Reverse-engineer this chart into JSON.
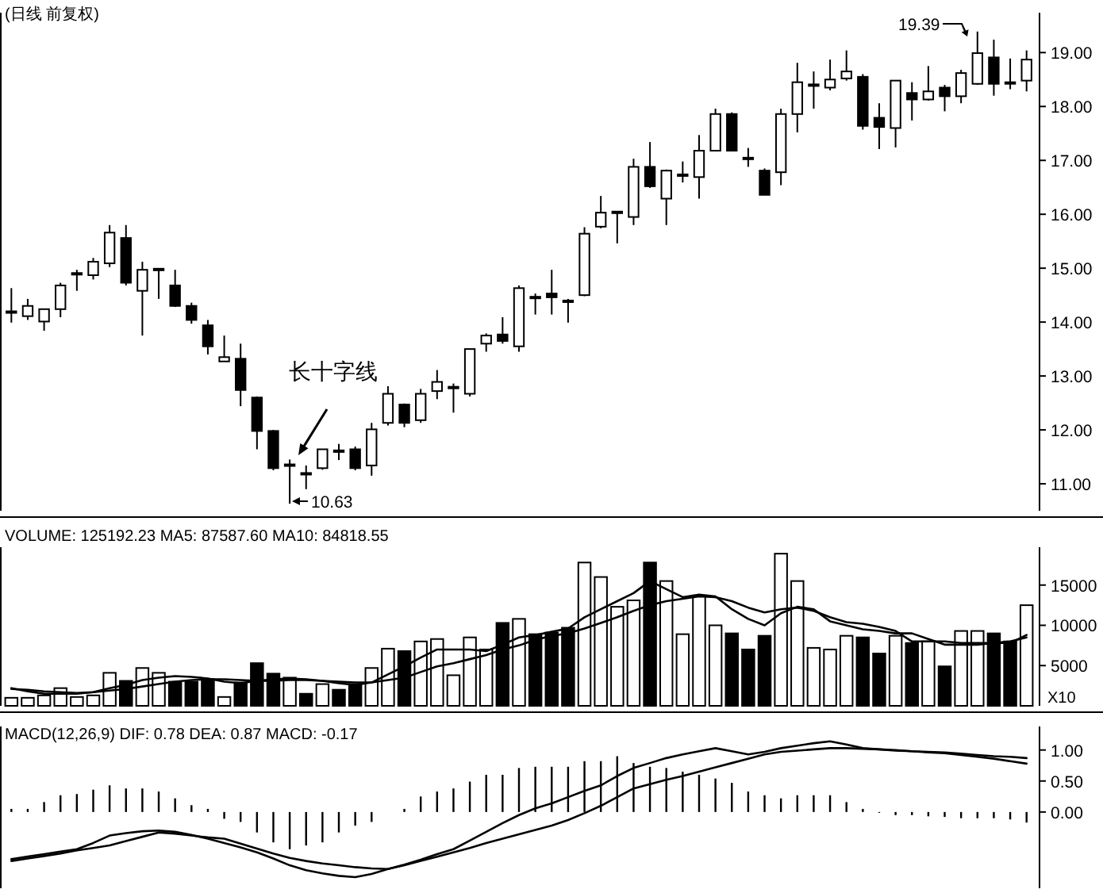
{
  "chart_data": [
    {
      "type": "candlestick",
      "title": "(日线 前复权)",
      "categories": [
        null,
        null,
        null,
        null,
        null,
        null,
        null,
        null,
        null,
        null,
        null,
        null,
        null,
        null,
        null,
        null,
        null,
        null,
        null,
        null,
        null,
        null,
        null,
        null,
        null,
        null,
        null,
        null,
        null,
        null,
        null,
        null,
        null,
        null,
        null,
        null,
        null,
        null,
        null,
        null,
        null,
        null,
        null,
        null,
        null,
        null,
        null,
        null,
        null,
        null,
        null,
        null,
        null,
        null,
        null,
        null,
        null,
        null,
        null,
        null,
        null,
        null,
        null
      ],
      "ohlc": [
        [
          14.18,
          14.63,
          13.99,
          14.2
        ],
        [
          14.11,
          14.43,
          14.04,
          14.3
        ],
        [
          14.01,
          14.24,
          13.84,
          14.24
        ],
        [
          14.24,
          14.73,
          14.09,
          14.68
        ],
        [
          14.89,
          14.97,
          14.58,
          14.91
        ],
        [
          14.87,
          15.19,
          14.79,
          15.12
        ],
        [
          15.09,
          15.8,
          15.02,
          15.66
        ],
        [
          15.56,
          15.8,
          14.68,
          14.73
        ],
        [
          14.58,
          15.12,
          13.75,
          14.97
        ],
        [
          14.97,
          14.99,
          14.43,
          14.99
        ],
        [
          14.68,
          14.97,
          14.28,
          14.3
        ],
        [
          14.3,
          14.36,
          13.97,
          14.04
        ],
        [
          13.94,
          14.04,
          13.4,
          13.55
        ],
        [
          13.27,
          13.75,
          13.27,
          13.35
        ],
        [
          13.32,
          13.6,
          12.44,
          12.74
        ],
        [
          12.6,
          12.62,
          11.64,
          11.98
        ],
        [
          11.98,
          12.0,
          11.25,
          11.29
        ],
        [
          11.34,
          11.45,
          10.63,
          11.36
        ],
        [
          11.19,
          11.34,
          10.9,
          11.2
        ],
        [
          11.29,
          11.64,
          11.26,
          11.64
        ],
        [
          11.6,
          11.74,
          11.44,
          11.62
        ],
        [
          11.64,
          11.69,
          11.25,
          11.29
        ],
        [
          11.34,
          12.13,
          11.15,
          12.01
        ],
        [
          12.13,
          12.81,
          12.08,
          12.67
        ],
        [
          12.47,
          12.49,
          12.05,
          12.13
        ],
        [
          12.18,
          12.76,
          12.13,
          12.67
        ],
        [
          12.72,
          13.11,
          12.57,
          12.89
        ],
        [
          12.78,
          12.86,
          12.32,
          12.8
        ],
        [
          12.67,
          13.5,
          12.62,
          13.5
        ],
        [
          13.6,
          13.79,
          13.45,
          13.75
        ],
        [
          13.77,
          14.09,
          13.6,
          13.65
        ],
        [
          13.55,
          14.68,
          13.45,
          14.63
        ],
        [
          14.45,
          14.53,
          14.14,
          14.47
        ],
        [
          14.53,
          14.97,
          14.14,
          14.46
        ],
        [
          14.4,
          14.43,
          13.99,
          14.39
        ],
        [
          14.5,
          15.76,
          14.48,
          15.64
        ],
        [
          15.77,
          16.34,
          15.74,
          16.03
        ],
        [
          16.04,
          16.05,
          15.46,
          16.05
        ],
        [
          15.95,
          17.03,
          15.8,
          16.88
        ],
        [
          16.88,
          17.34,
          16.49,
          16.52
        ],
        [
          16.29,
          16.83,
          15.8,
          16.81
        ],
        [
          16.73,
          16.98,
          16.59,
          16.74
        ],
        [
          16.69,
          17.47,
          16.29,
          17.18
        ],
        [
          17.18,
          17.96,
          17.18,
          17.86
        ],
        [
          17.86,
          17.89,
          17.18,
          17.18
        ],
        [
          17.05,
          17.23,
          16.88,
          17.04
        ],
        [
          16.81,
          16.85,
          16.36,
          16.36
        ],
        [
          16.78,
          17.96,
          16.54,
          17.86
        ],
        [
          17.86,
          18.81,
          17.52,
          18.45
        ],
        [
          18.4,
          18.65,
          17.96,
          18.41
        ],
        [
          18.35,
          18.87,
          18.3,
          18.5
        ],
        [
          18.52,
          19.04,
          18.48,
          18.65
        ],
        [
          18.55,
          18.6,
          17.57,
          17.64
        ],
        [
          17.79,
          18.06,
          17.21,
          17.62
        ],
        [
          17.6,
          18.48,
          17.24,
          18.48
        ],
        [
          18.25,
          18.45,
          17.74,
          18.13
        ],
        [
          18.13,
          18.75,
          18.11,
          18.28
        ],
        [
          18.35,
          18.4,
          17.91,
          18.19
        ],
        [
          18.19,
          18.68,
          18.06,
          18.62
        ],
        [
          18.42,
          19.39,
          18.4,
          18.99
        ],
        [
          18.91,
          19.24,
          18.2,
          18.42
        ],
        [
          18.45,
          18.89,
          18.32,
          18.44
        ],
        [
          18.48,
          19.04,
          18.28,
          18.87
        ]
      ],
      "ylim": [
        10.5,
        19.74
      ],
      "yticks": [
        {
          "value": 11,
          "label": "11.00"
        },
        {
          "value": 12,
          "label": "12.00"
        },
        {
          "value": 13,
          "label": "13.00"
        },
        {
          "value": 14,
          "label": "14.00"
        },
        {
          "value": 15,
          "label": "15.00"
        },
        {
          "value": 16,
          "label": "16.00"
        },
        {
          "value": 17,
          "label": "17.00"
        },
        {
          "value": 18,
          "label": "18.00"
        },
        {
          "value": 19,
          "label": "19.00"
        }
      ],
      "annotations": [
        "长十字线",
        "10.63",
        "19.39"
      ]
    },
    {
      "type": "bar",
      "title": "VOLUME: 125192.23 MA5: 87587.60 MA10: 84818.55",
      "ylabel": "X10",
      "categories": [
        null,
        null,
        null,
        null,
        null,
        null,
        null,
        null,
        null,
        null,
        null,
        null,
        null,
        null,
        null,
        null,
        null,
        null,
        null,
        null,
        null,
        null,
        null,
        null,
        null,
        null,
        null,
        null,
        null,
        null,
        null,
        null,
        null,
        null,
        null,
        null,
        null,
        null,
        null,
        null,
        null,
        null,
        null,
        null,
        null,
        null,
        null,
        null,
        null,
        null,
        null,
        null,
        null,
        null,
        null,
        null,
        null,
        null,
        null,
        null,
        null,
        null,
        null
      ],
      "series": [
        {
          "type": "bar",
          "colors": [
            "#ffffff",
            "#ffffff",
            "#ffffff",
            "#ffffff",
            "#ffffff",
            "#ffffff",
            "#ffffff",
            "#000000",
            "#ffffff",
            "#ffffff",
            "#000000",
            "#000000",
            "#000000",
            "#ffffff",
            "#000000",
            "#000000",
            "#000000",
            "#ffffff",
            "#000000",
            "#ffffff",
            "#000000",
            "#000000",
            "#ffffff",
            "#ffffff",
            "#000000",
            "#ffffff",
            "#ffffff",
            "#ffffff",
            "#ffffff",
            "#ffffff",
            "#000000",
            "#ffffff",
            "#000000",
            "#000000",
            "#000000",
            "#ffffff",
            "#ffffff",
            "#ffffff",
            "#ffffff",
            "#000000",
            "#ffffff",
            "#ffffff",
            "#ffffff",
            "#ffffff",
            "#000000",
            "#000000",
            "#000000",
            "#ffffff",
            "#ffffff",
            "#ffffff",
            "#ffffff",
            "#ffffff",
            "#000000",
            "#000000",
            "#ffffff",
            "#000000",
            "#ffffff",
            "#000000",
            "#ffffff",
            "#ffffff",
            "#000000",
            "#000000",
            "#ffffff"
          ],
          "values": [
            1000,
            1000,
            1300,
            2200,
            1100,
            1300,
            4100,
            3100,
            4700,
            4100,
            3000,
            3000,
            3300,
            1100,
            2900,
            5300,
            4000,
            3500,
            1500,
            2700,
            2000,
            2700,
            4700,
            7100,
            6800,
            8000,
            8300,
            3800,
            8500,
            7000,
            10300,
            10800,
            8900,
            9100,
            9700,
            17800,
            16000,
            12300,
            13100,
            17800,
            15500,
            8900,
            13700,
            10000,
            9000,
            7000,
            8700,
            18900,
            15500,
            7200,
            7000,
            8700,
            8500,
            6500,
            8700,
            7800,
            8000,
            4900,
            9300,
            9300,
            9000,
            8000,
            12500
          ]
        },
        {
          "type": "line",
          "color": "#000000",
          "values": [
            2200,
            1800,
            1500,
            1500,
            1500,
            1700,
            2200,
            2600,
            3200,
            3500,
            3700,
            3600,
            3400,
            3000,
            2800,
            3100,
            3300,
            3400,
            3300,
            3100,
            2800,
            2600,
            2900,
            3900,
            4900,
            6000,
            7000,
            7000,
            7000,
            6800,
            7600,
            8500,
            8800,
            9200,
            9600,
            11000,
            12000,
            13000,
            14000,
            15500,
            14500,
            13500,
            13800,
            13600,
            12000,
            10800,
            10000,
            11500,
            12300,
            12000,
            10500,
            10000,
            9500,
            9300,
            9000,
            9000,
            8300,
            7600,
            7600,
            7600,
            7800,
            7800,
            8800
          ]
        },
        {
          "type": "line",
          "color": "#000000",
          "values": [
            2100,
            2000,
            1800,
            1700,
            1600,
            1700,
            1900,
            2100,
            2400,
            2700,
            3000,
            3200,
            3300,
            3300,
            3200,
            3100,
            3100,
            3200,
            3200,
            3100,
            3000,
            2900,
            2900,
            3200,
            3500,
            4200,
            4900,
            5300,
            5800,
            6300,
            7000,
            7500,
            8200,
            8700,
            9000,
            9600,
            10300,
            11000,
            11800,
            12500,
            13000,
            13300,
            13600,
            13500,
            13000,
            12200,
            11600,
            12000,
            12200,
            11800,
            11000,
            10400,
            10200,
            9800,
            9300,
            8000,
            8000,
            8000,
            7800,
            7800,
            7800,
            8000,
            8500
          ]
        }
      ],
      "ylim": [
        0,
        19700
      ],
      "yticks": [
        5000,
        10000,
        15000
      ]
    },
    {
      "type": "line",
      "title": "MACD(12,26,9) DIF: 0.78 DEA: 0.87 MACD: -0.17",
      "categories": [
        null,
        null,
        null,
        null,
        null,
        null,
        null,
        null,
        null,
        null,
        null,
        null,
        null,
        null,
        null,
        null,
        null,
        null,
        null,
        null,
        null,
        null,
        null,
        null,
        null,
        null,
        null,
        null,
        null,
        null,
        null,
        null,
        null,
        null,
        null,
        null,
        null,
        null,
        null,
        null,
        null,
        null,
        null,
        null,
        null,
        null,
        null,
        null,
        null,
        null,
        null,
        null,
        null,
        null,
        null,
        null,
        null,
        null,
        null,
        null,
        null,
        null,
        null
      ],
      "series": [
        {
          "type": "bar",
          "color": "#000000",
          "values": [
            0.05,
            0.05,
            0.16,
            0.27,
            0.29,
            0.36,
            0.43,
            0.38,
            0.38,
            0.33,
            0.22,
            0.11,
            0.05,
            -0.11,
            -0.16,
            -0.33,
            -0.49,
            -0.6,
            -0.54,
            -0.49,
            -0.33,
            -0.22,
            -0.16,
            null,
            0.05,
            0.25,
            0.33,
            0.38,
            0.49,
            0.6,
            0.6,
            0.71,
            0.73,
            0.73,
            0.73,
            0.82,
            0.82,
            0.9,
            0.79,
            0.73,
            0.71,
            0.65,
            0.6,
            0.54,
            0.47,
            0.33,
            0.27,
            0.22,
            0.27,
            0.27,
            0.27,
            0.16,
            0.05,
            0.0,
            -0.05,
            -0.05,
            -0.07,
            -0.08,
            -0.1,
            -0.1,
            -0.1,
            -0.12,
            -0.17
          ]
        },
        {
          "type": "line",
          "color": "#000000",
          "values": [
            -0.76,
            -0.72,
            -0.68,
            -0.64,
            -0.6,
            -0.5,
            -0.38,
            -0.34,
            -0.31,
            -0.3,
            -0.32,
            -0.37,
            -0.43,
            -0.5,
            -0.57,
            -0.65,
            -0.75,
            -0.86,
            -0.94,
            -0.99,
            -1.03,
            -1.05,
            -1.0,
            -0.92,
            -0.85,
            -0.77,
            -0.68,
            -0.6,
            -0.46,
            -0.32,
            -0.18,
            -0.05,
            0.06,
            0.14,
            0.24,
            0.34,
            0.43,
            0.58,
            0.71,
            0.79,
            0.87,
            0.93,
            0.98,
            1.03,
            0.98,
            0.93,
            0.97,
            1.03,
            1.07,
            1.11,
            1.14,
            1.09,
            1.03,
            1.01,
            0.99,
            0.98,
            0.96,
            0.95,
            0.92,
            0.89,
            0.86,
            0.82,
            0.78
          ]
        },
        {
          "type": "line",
          "color": "#000000",
          "values": [
            -0.79,
            -0.75,
            -0.71,
            -0.67,
            -0.62,
            -0.58,
            -0.54,
            -0.47,
            -0.4,
            -0.33,
            -0.35,
            -0.38,
            -0.41,
            -0.43,
            -0.51,
            -0.59,
            -0.67,
            -0.74,
            -0.79,
            -0.83,
            -0.86,
            -0.89,
            -0.91,
            -0.92,
            -0.86,
            -0.79,
            -0.72,
            -0.65,
            -0.58,
            -0.5,
            -0.43,
            -0.36,
            -0.29,
            -0.22,
            -0.13,
            -0.02,
            0.1,
            0.24,
            0.38,
            0.45,
            0.52,
            0.58,
            0.65,
            0.72,
            0.79,
            0.86,
            0.93,
            0.97,
            0.99,
            1.01,
            1.03,
            1.03,
            1.02,
            1.01,
            1.0,
            0.98,
            0.97,
            0.96,
            0.94,
            0.92,
            0.9,
            0.89,
            0.87
          ]
        }
      ],
      "ylim": [
        -1.23,
        1.38
      ],
      "yticks": [
        {
          "value": 0,
          "label": "0.00"
        },
        {
          "value": 0.5,
          "label": "0.50"
        },
        {
          "value": 1,
          "label": "1.00"
        }
      ]
    }
  ]
}
